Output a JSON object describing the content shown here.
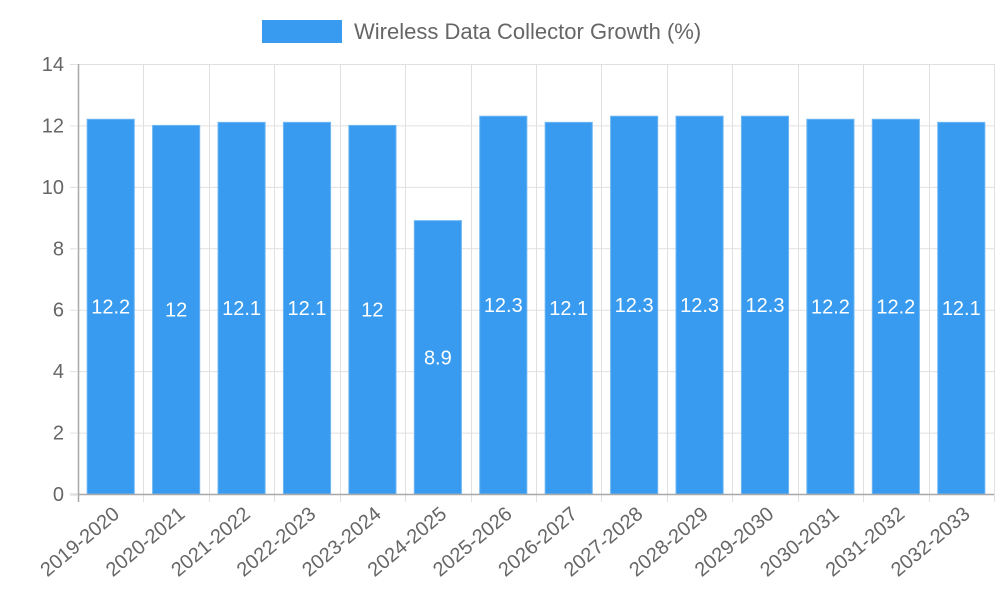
{
  "chart_data": {
    "type": "bar",
    "title": "",
    "legend": [
      {
        "label": "Wireless Data Collector Growth (%)",
        "color": "#389BEF"
      }
    ],
    "legend_position": "top",
    "categories": [
      "2019-2020",
      "2020-2021",
      "2021-2022",
      "2022-2023",
      "2023-2024",
      "2024-2025",
      "2025-2026",
      "2026-2027",
      "2027-2028",
      "2028-2029",
      "2029-2030",
      "2030-2031",
      "2031-2032",
      "2032-2033"
    ],
    "series": [
      {
        "name": "Wireless Data Collector Growth (%)",
        "values": [
          12.2,
          12,
          12.1,
          12.1,
          12,
          8.9,
          12.3,
          12.1,
          12.3,
          12.3,
          12.3,
          12.2,
          12.2,
          12.1
        ]
      }
    ],
    "data_labels": [
      "12.2",
      "12",
      "12.1",
      "12.1",
      "12",
      "8.9",
      "12.3",
      "12.1",
      "12.3",
      "12.3",
      "12.3",
      "12.2",
      "12.2",
      "12.1"
    ],
    "xlabel": "",
    "ylabel": "",
    "ylim": [
      0,
      14
    ],
    "yticks": [
      0,
      2,
      4,
      6,
      8,
      10,
      12,
      14
    ],
    "grid": true
  },
  "legend": {
    "label": "Wireless Data Collector Growth (%)"
  },
  "colors": {
    "bar": "#389BEF",
    "bar_border": "#6CB6F3",
    "grid": "#E0E0E0",
    "axis": "#A8A8A8",
    "tick_text": "#666666",
    "label_text": "#FFFFFF"
  }
}
